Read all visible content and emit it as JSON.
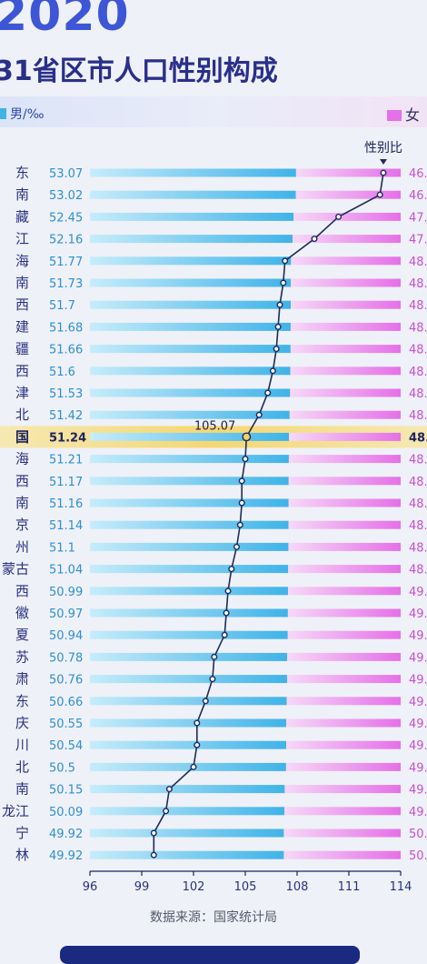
{
  "header": {
    "year": "2020",
    "title": "31省区市人口性别构成",
    "legend_male": "男/‰",
    "legend_female": "女"
  },
  "source": "数据来源：国家统计局",
  "colors": {
    "male_bar_light": "#c6ecfa",
    "male_bar": "#3fb3e8",
    "female_bar_light": "#f6d8f7",
    "female_bar": "#e570e8",
    "ratio_line": "#1d2b5c",
    "highlight": "#f6d35a",
    "title": "#2a2f8a"
  },
  "chart_data": {
    "type": "bar",
    "title": "31省区市人口性别构成",
    "ratio_label": "性别比",
    "national_ratio_label": "105.07",
    "highlight_row": "国",
    "xlim": [
      96,
      114
    ],
    "xticks": [
      96,
      99,
      102,
      105,
      108,
      111,
      114
    ],
    "rows": [
      {
        "name": "东",
        "male": 53.07,
        "female": "46.",
        "ratio": 113.0
      },
      {
        "name": "南",
        "male": 53.02,
        "female": "46.",
        "ratio": 112.8
      },
      {
        "name": "藏",
        "male": 52.45,
        "female": "47.",
        "ratio": 110.4
      },
      {
        "name": "江",
        "male": 52.16,
        "female": "47.",
        "ratio": 109.0
      },
      {
        "name": "海",
        "male": 51.77,
        "female": "48.",
        "ratio": 107.3
      },
      {
        "name": "南",
        "male": 51.73,
        "female": "48.",
        "ratio": 107.2
      },
      {
        "name": "西",
        "male": 51.7,
        "female": "48.",
        "ratio": 107.0
      },
      {
        "name": "建",
        "male": 51.68,
        "female": "48.",
        "ratio": 106.9
      },
      {
        "name": "疆",
        "male": 51.66,
        "female": "48.",
        "ratio": 106.8
      },
      {
        "name": "西",
        "male": 51.6,
        "female": "48.",
        "ratio": 106.6
      },
      {
        "name": "津",
        "male": 51.53,
        "female": "48.",
        "ratio": 106.3
      },
      {
        "name": "北",
        "male": 51.42,
        "female": "48.",
        "ratio": 105.8
      },
      {
        "name": "国",
        "male": 51.24,
        "female": "48.",
        "ratio": 105.07
      },
      {
        "name": "海",
        "male": 51.21,
        "female": "48.",
        "ratio": 105.0
      },
      {
        "name": "西",
        "male": 51.17,
        "female": "48.",
        "ratio": 104.8
      },
      {
        "name": "南",
        "male": 51.16,
        "female": "48.",
        "ratio": 104.8
      },
      {
        "name": "京",
        "male": 51.14,
        "female": "48.",
        "ratio": 104.7
      },
      {
        "name": "州",
        "male": 51.1,
        "female": "48.",
        "ratio": 104.5
      },
      {
        "name": "蒙古",
        "male": 51.04,
        "female": "48.",
        "ratio": 104.2
      },
      {
        "name": "西",
        "male": 50.99,
        "female": "49.",
        "ratio": 104.0
      },
      {
        "name": "徽",
        "male": 50.97,
        "female": "49.",
        "ratio": 103.9
      },
      {
        "name": "夏",
        "male": 50.94,
        "female": "49.",
        "ratio": 103.8
      },
      {
        "name": "苏",
        "male": 50.78,
        "female": "49.",
        "ratio": 103.2
      },
      {
        "name": "肃",
        "male": 50.76,
        "female": "49.",
        "ratio": 103.1
      },
      {
        "name": "东",
        "male": 50.66,
        "female": "49.",
        "ratio": 102.7
      },
      {
        "name": "庆",
        "male": 50.55,
        "female": "49.",
        "ratio": 102.2
      },
      {
        "name": "川",
        "male": 50.54,
        "female": "49.",
        "ratio": 102.2
      },
      {
        "name": "北",
        "male": 50.5,
        "female": "49.",
        "ratio": 102.0
      },
      {
        "name": "南",
        "male": 50.15,
        "female": "49.",
        "ratio": 100.6
      },
      {
        "name": "龙江",
        "male": 50.09,
        "female": "49.",
        "ratio": 100.4
      },
      {
        "name": "宁",
        "male": 49.92,
        "female": "50.",
        "ratio": 99.7
      },
      {
        "name": "林",
        "male": 49.92,
        "female": "50.",
        "ratio": 99.7
      }
    ]
  }
}
